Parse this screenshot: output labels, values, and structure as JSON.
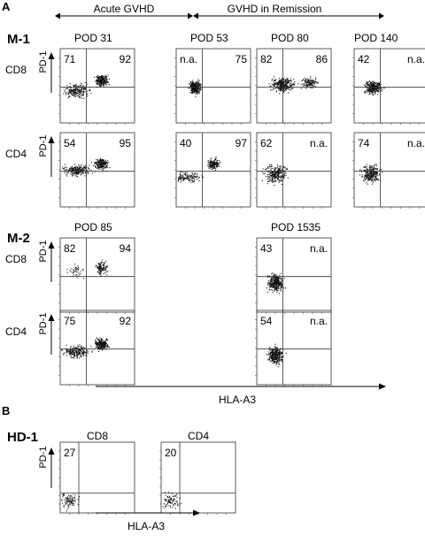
{
  "panels": [
    {
      "letter": "A",
      "timeline": {
        "left_label": "Acute GVHD",
        "right_label": "GVHD in Remission"
      },
      "xaxis_label": "HLA-A3",
      "yaxis_label": "PD-1",
      "groups": [
        {
          "id": "M-1",
          "pods": [
            "POD 31",
            "POD 53",
            "POD 80",
            "POD 140"
          ],
          "rows": [
            {
              "cell_type": "CD8",
              "values": [
                [
                  "71",
                  "92"
                ],
                [
                  "n.a.",
                  "75"
                ],
                [
                  "82",
                  "86"
                ],
                [
                  "42",
                  "n.a."
                ]
              ]
            },
            {
              "cell_type": "CD4",
              "values": [
                [
                  "54",
                  "95"
                ],
                [
                  "40",
                  "97"
                ],
                [
                  "62",
                  "n.a."
                ],
                [
                  "74",
                  "n.a."
                ]
              ]
            }
          ]
        },
        {
          "id": "M-2",
          "pods": [
            "POD 85",
            "POD 1535"
          ],
          "rows": [
            {
              "cell_type": "CD8",
              "values": [
                [
                  "82",
                  "94"
                ],
                [
                  "43",
                  "n.a."
                ]
              ]
            },
            {
              "cell_type": "CD4",
              "values": [
                [
                  "75",
                  "92"
                ],
                [
                  "54",
                  "n.a."
                ]
              ]
            }
          ]
        }
      ]
    },
    {
      "letter": "B",
      "xaxis_label": "HLA-A3",
      "yaxis_label": "PD-1",
      "groups": [
        {
          "id": "HD-1",
          "columns": [
            "CD8",
            "CD4"
          ],
          "values": [
            [
              "27",
              ""
            ],
            [
              "20",
              ""
            ]
          ]
        }
      ]
    }
  ]
}
